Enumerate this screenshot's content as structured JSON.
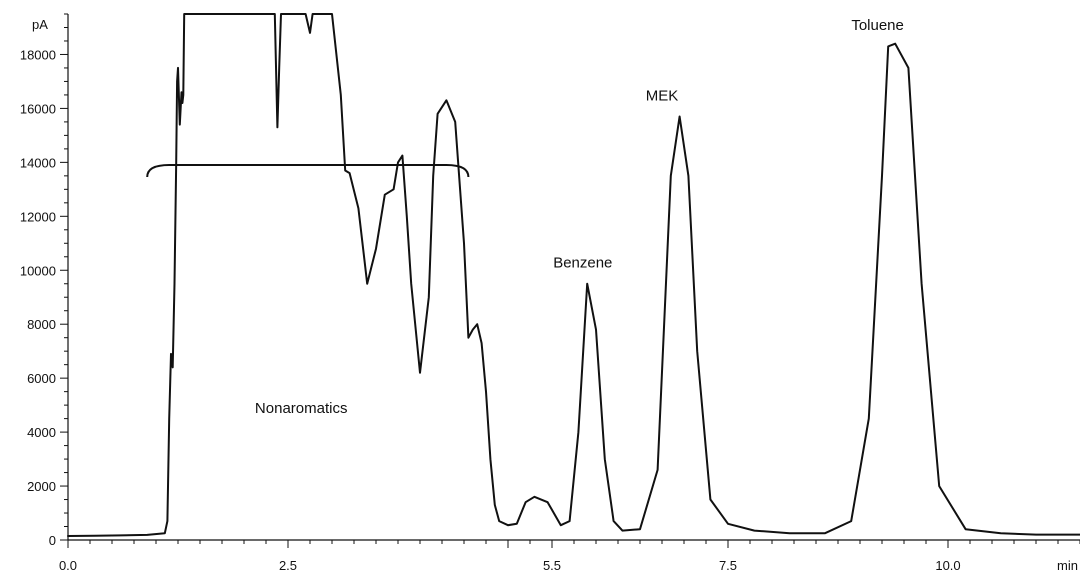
{
  "chart_data": {
    "type": "line",
    "title": "",
    "xlabel": "min",
    "ylabel": "pA",
    "xlim": [
      0,
      11.5
    ],
    "ylim": [
      0,
      19500
    ],
    "x_ticks": [
      0.0,
      2.5,
      5.5,
      7.5,
      10.0
    ],
    "x_tick_labels": [
      "0.0",
      "2.5",
      "5.5",
      "7.5",
      "10.0"
    ],
    "y_ticks": [
      0,
      2000,
      4000,
      6000,
      8000,
      10000,
      12000,
      14000,
      16000,
      18000
    ],
    "y_tick_labels": [
      "0",
      "2000",
      "4000",
      "6000",
      "8000",
      "10000",
      "12000",
      "14000",
      "16000",
      "18000"
    ],
    "grid": false,
    "series": [
      {
        "x": [
          0.0,
          0.3,
          0.6,
          0.9,
          1.1,
          1.13,
          1.15,
          1.17,
          1.19,
          1.21,
          1.23,
          1.24,
          1.25,
          1.27,
          1.29,
          1.3,
          1.31,
          1.32,
          1.33,
          1.36,
          1.4,
          1.5,
          2.0,
          2.3,
          2.35,
          2.38,
          2.4,
          2.42,
          2.45,
          2.5,
          2.6,
          2.7,
          2.75,
          2.78,
          2.82,
          2.9,
          3.0,
          3.1,
          3.15,
          3.2,
          3.3,
          3.4,
          3.5,
          3.6,
          3.7,
          3.75,
          3.8,
          3.85,
          3.9,
          4.0,
          4.1,
          4.15,
          4.2,
          4.3,
          4.4,
          4.5,
          4.55,
          4.6,
          4.65,
          4.7,
          4.75,
          4.8,
          4.85,
          4.9,
          5.0,
          5.1,
          5.2,
          5.3,
          5.45,
          5.6,
          5.7,
          5.8,
          5.9,
          6.0,
          6.1,
          6.2,
          6.3,
          6.5,
          6.7,
          6.85,
          6.95,
          7.05,
          7.15,
          7.3,
          7.5,
          7.8,
          8.2,
          8.6,
          8.9,
          9.1,
          9.25,
          9.32,
          9.4,
          9.55,
          9.7,
          9.9,
          10.2,
          10.6,
          11.0,
          11.5
        ],
        "y": [
          150,
          160,
          170,
          190,
          250,
          700,
          4500,
          6900,
          6400,
          9500,
          14000,
          17000,
          17500,
          15400,
          16600,
          16200,
          16500,
          19500,
          19500,
          19500,
          19500,
          19500,
          19500,
          19500,
          19500,
          15300,
          17500,
          19500,
          19500,
          19500,
          19500,
          19500,
          18800,
          19500,
          19500,
          19500,
          19500,
          16500,
          13700,
          13600,
          12300,
          9500,
          10800,
          12800,
          13000,
          14000,
          14250,
          12000,
          9500,
          6200,
          9000,
          13500,
          15800,
          16300,
          15500,
          11000,
          7500,
          7800,
          8000,
          7300,
          5500,
          3000,
          1300,
          700,
          550,
          600,
          1400,
          1600,
          1400,
          550,
          700,
          4000,
          9500,
          7800,
          3000,
          700,
          350,
          400,
          2600,
          13500,
          15700,
          13500,
          7000,
          1500,
          600,
          350,
          250,
          250,
          700,
          4500,
          13500,
          18300,
          18400,
          17500,
          9500,
          2000,
          400,
          250,
          200,
          200
        ]
      }
    ],
    "annotations": [
      {
        "text": "Nonaromatics",
        "x": 2.65,
        "y": 4700
      },
      {
        "text": "Benzene",
        "x": 5.85,
        "y": 10100
      },
      {
        "text": "MEK",
        "x": 6.75,
        "y": 16300
      },
      {
        "text": "Toluene",
        "x": 9.2,
        "y": 18900
      }
    ],
    "bracket": {
      "x_start": 0.9,
      "x_end": 4.55,
      "y": 13900
    }
  }
}
